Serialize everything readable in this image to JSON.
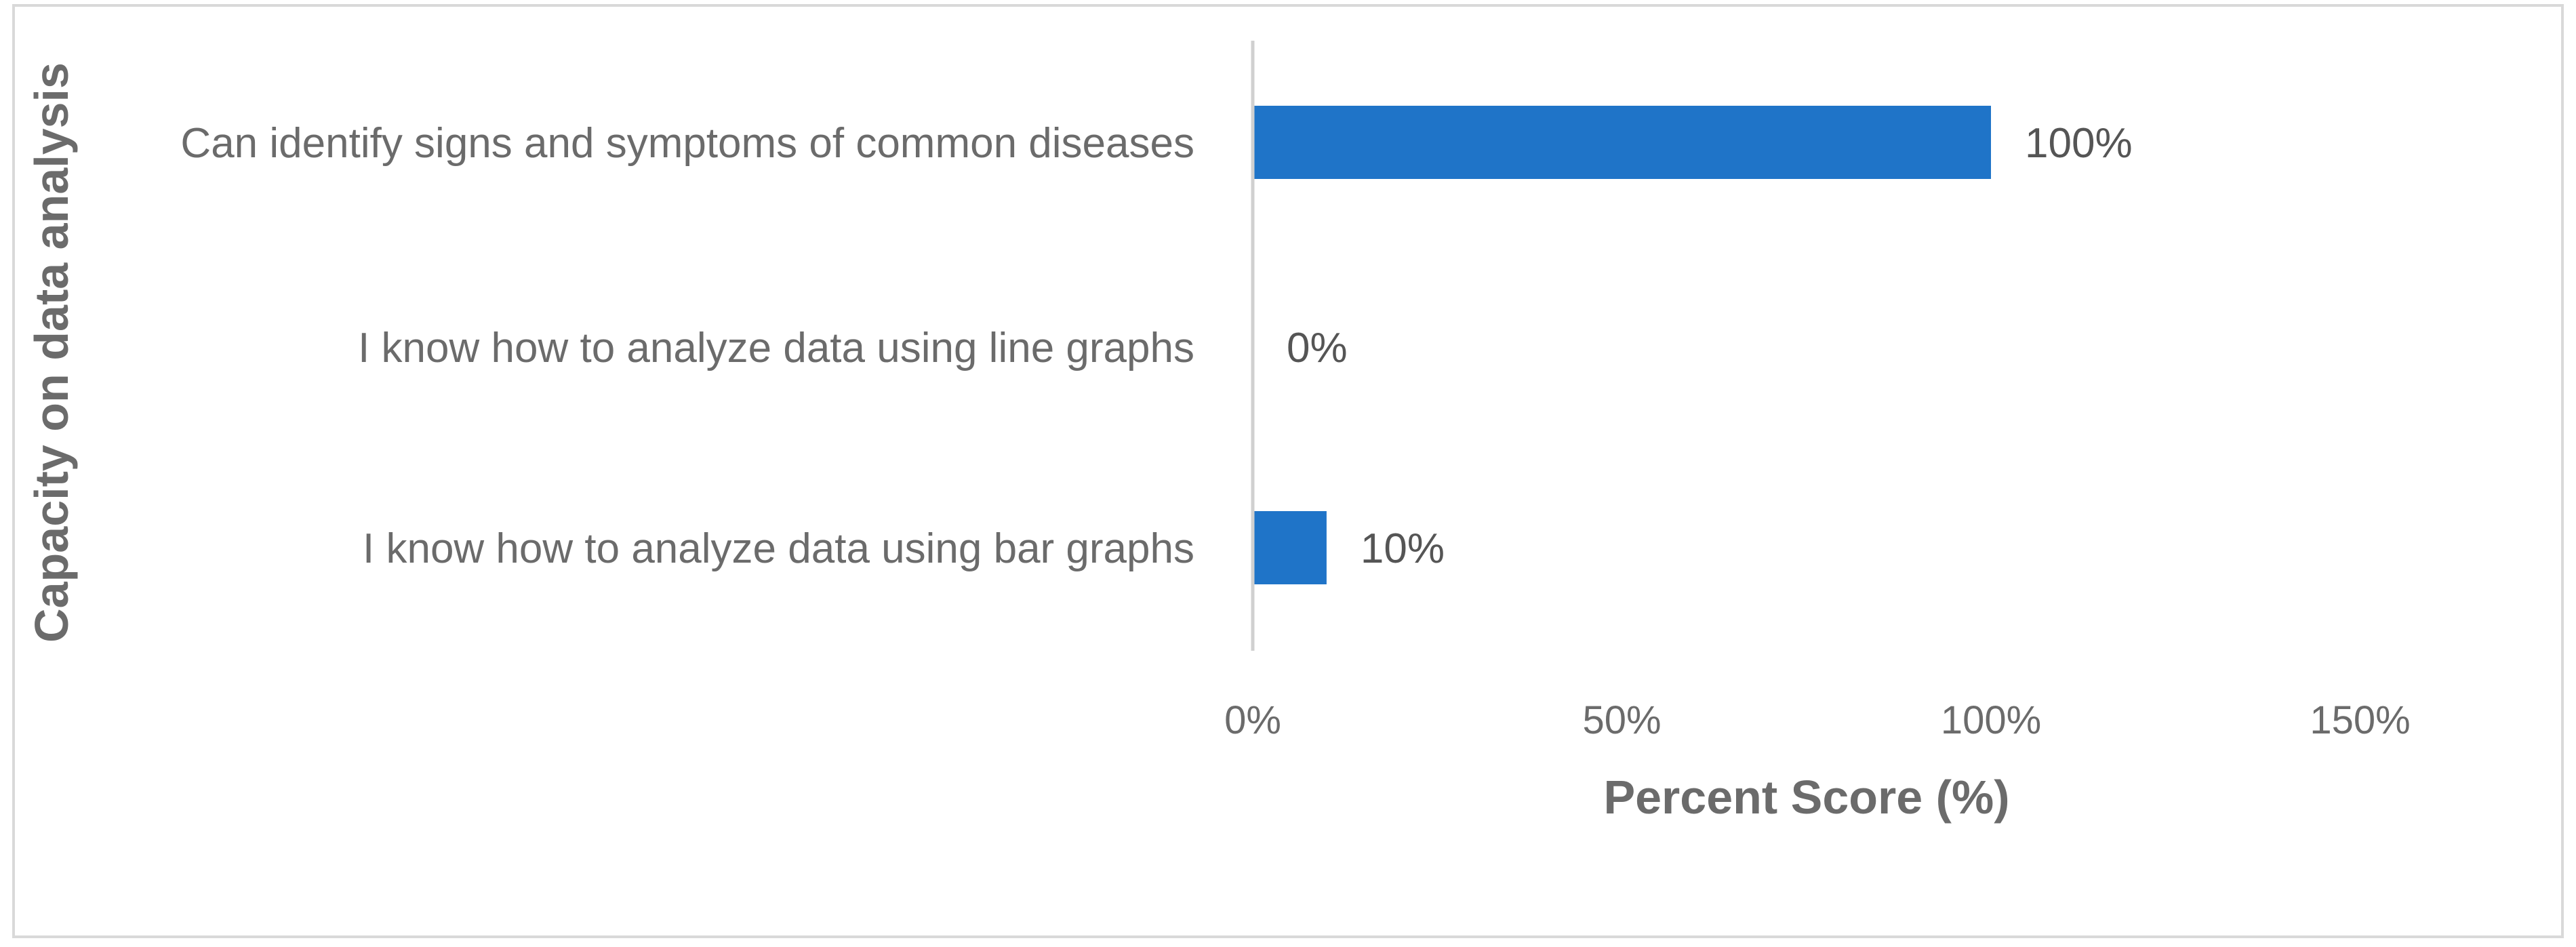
{
  "chart_data": {
    "type": "bar",
    "orientation": "horizontal",
    "categories": [
      "Can identify signs and symptoms of common diseases",
      "I know how to analyze data using line graphs",
      "I know how to analyze data using bar graphs"
    ],
    "values": [
      100,
      0,
      10
    ],
    "data_labels": [
      "100%",
      "0%",
      "10%"
    ],
    "xlabel": "Percent Score (%)",
    "ylabel": "Capacity on data analysis",
    "xlim": [
      0,
      150
    ],
    "x_ticks": [
      0,
      50,
      100,
      150
    ],
    "x_tick_labels": [
      "0%",
      "50%",
      "100%",
      "150%"
    ],
    "grid": false,
    "legend": "none",
    "bar_color": "#1f74c8"
  }
}
